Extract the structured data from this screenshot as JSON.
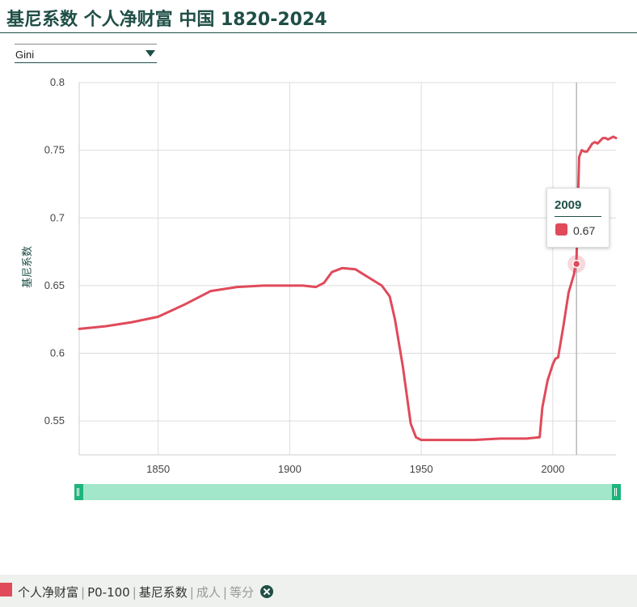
{
  "page": {
    "title": "基尼系数 个人净财富 中国 1820-2024"
  },
  "selector": {
    "value": "Gini"
  },
  "chart_data": {
    "type": "line",
    "title": "基尼系数 个人净财富 中国 1820-2024",
    "xlabel": "",
    "ylabel": "基尼系数",
    "xlim": [
      1820,
      2024
    ],
    "ylim": [
      0.525,
      0.8
    ],
    "x_ticks": [
      1850,
      1900,
      1950,
      2000
    ],
    "y_ticks": [
      0.55,
      0.6,
      0.65,
      0.7,
      0.75,
      0.8
    ],
    "y_tick_labels": [
      "0.55",
      "0.6",
      "0.65",
      "0.7",
      "0.75",
      "0.8"
    ],
    "grid": true,
    "series": [
      {
        "name": "个人净财富",
        "color": "#e04a5a",
        "x": [
          1820,
          1830,
          1840,
          1850,
          1860,
          1870,
          1880,
          1890,
          1900,
          1905,
          1910,
          1913,
          1916,
          1920,
          1925,
          1930,
          1935,
          1938,
          1940,
          1943,
          1946,
          1948,
          1950,
          1960,
          1970,
          1980,
          1990,
          1995,
          1996,
          1998,
          2000,
          2001,
          2002,
          2004,
          2006,
          2008,
          2009,
          2010,
          2011,
          2012,
          2013,
          2014,
          2015,
          2016,
          2017,
          2018,
          2019,
          2020,
          2021,
          2022,
          2023,
          2024
        ],
        "y": [
          0.618,
          0.62,
          0.623,
          0.627,
          0.636,
          0.646,
          0.649,
          0.65,
          0.65,
          0.65,
          0.649,
          0.652,
          0.66,
          0.663,
          0.662,
          0.656,
          0.65,
          0.642,
          0.625,
          0.59,
          0.548,
          0.538,
          0.536,
          0.536,
          0.536,
          0.537,
          0.537,
          0.538,
          0.56,
          0.58,
          0.592,
          0.596,
          0.597,
          0.62,
          0.645,
          0.658,
          0.67,
          0.745,
          0.75,
          0.749,
          0.749,
          0.752,
          0.755,
          0.756,
          0.755,
          0.757,
          0.759,
          0.759,
          0.758,
          0.759,
          0.76,
          0.759
        ]
      }
    ],
    "highlight": {
      "year": "2009",
      "value_label": "0.67",
      "x": 2009,
      "y": 0.666
    }
  },
  "slider": {
    "from": 1820,
    "to": 2024
  },
  "legend": {
    "color": "#e04a5a",
    "items": [
      "个人净财富",
      "P0-100",
      "基尼系数"
    ],
    "muted_items": [
      "成人",
      "等分"
    ]
  }
}
